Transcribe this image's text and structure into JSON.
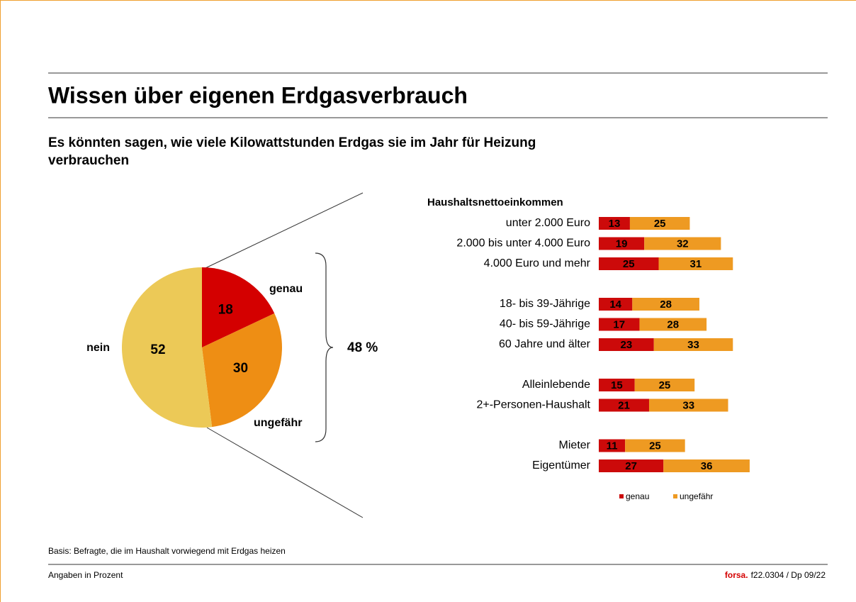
{
  "title": "Wissen über eigenen Erdgasverbrauch",
  "subtitle": [
    "Es könnten sagen, wie  viele Kilowattstunden  Erdgas sie im Jahr für Heizung",
    "verbrauchen"
  ],
  "annotation": "48 %",
  "footnote": "Basis: Befragte, die im Haushalt vorwiegend  mit Erdgas heizen",
  "units_note": "Angaben in Prozent",
  "brand": "forsa.",
  "code": "f22.0304  / Dp 09/22",
  "chart_data": [
    {
      "type": "pie",
      "categories": [
        "genau",
        "ungefähr",
        "nein"
      ],
      "values": [
        18,
        30,
        52
      ],
      "colors": [
        "#d40000",
        "#ee8e14",
        "#ecc957"
      ]
    },
    {
      "type": "stacked-barh",
      "group_title": "Haushaltsnettoeinkommen",
      "categories": [
        "unter  2.000 Euro",
        "2.000 bis unter  4.000 Euro",
        "4.000 Euro und mehr",
        "18- bis 39-Jährige",
        "40- bis 59-Jährige",
        "60 Jahre und älter",
        "Alleinlebende",
        "2+-Personen-Haushalt",
        "Mieter",
        "Eigentümer"
      ],
      "series": [
        {
          "name": "genau",
          "color": "#cc0a0a",
          "values": [
            13,
            19,
            25,
            14,
            17,
            23,
            15,
            21,
            11,
            27
          ]
        },
        {
          "name": "ungefähr",
          "color": "#ee9a22",
          "values": [
            25,
            32,
            31,
            28,
            28,
            33,
            25,
            33,
            25,
            36
          ]
        }
      ],
      "legend": "bottom"
    }
  ]
}
